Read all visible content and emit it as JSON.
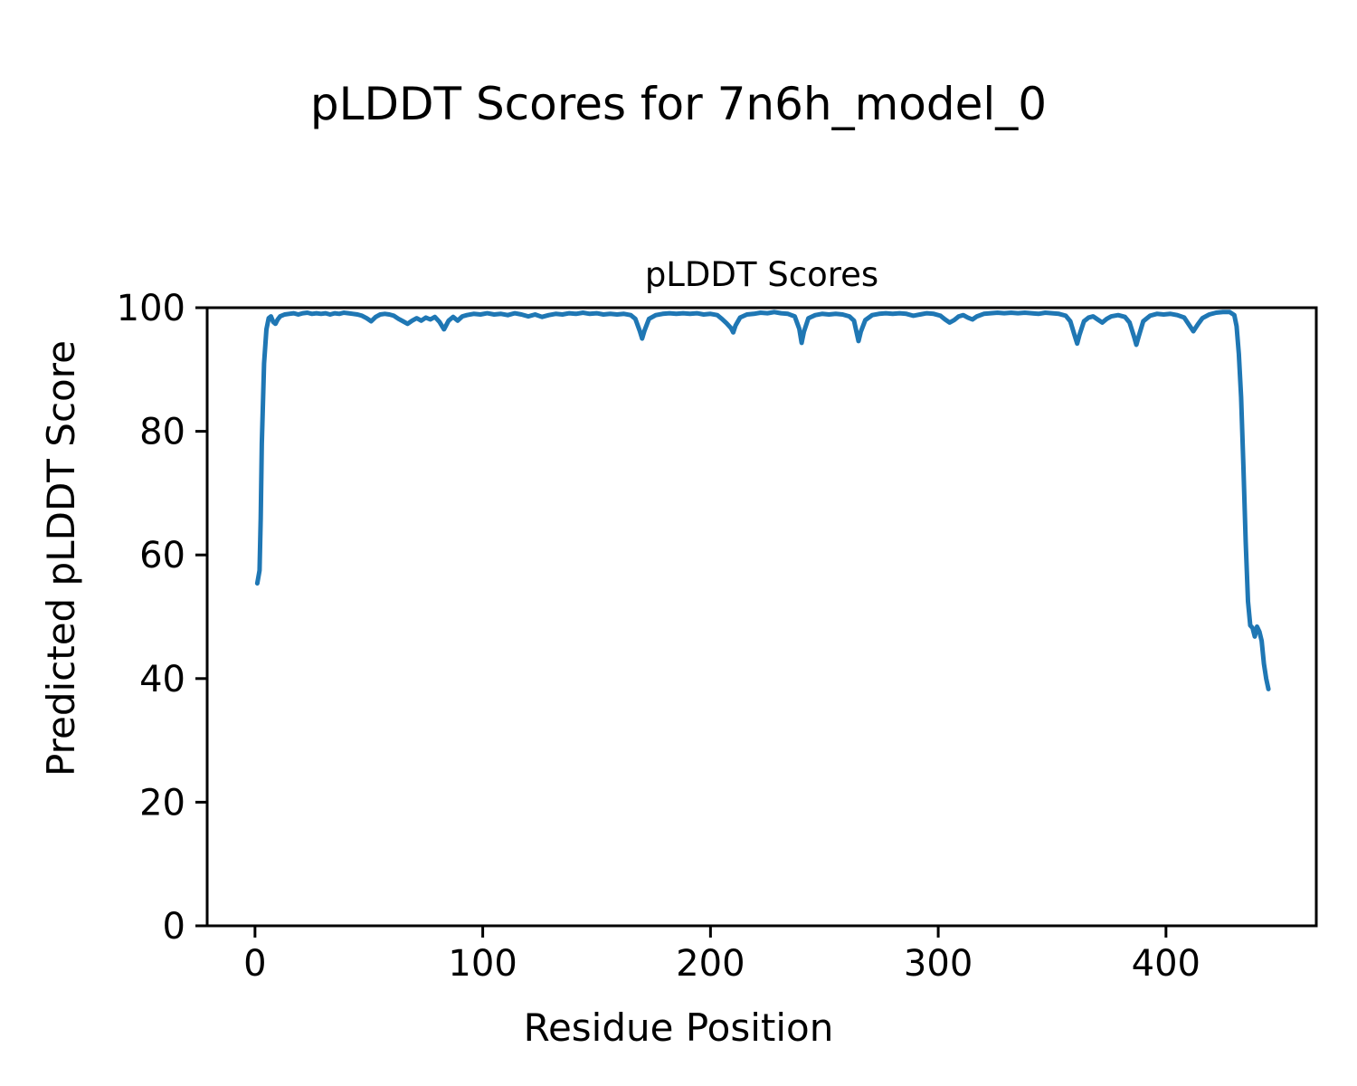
{
  "figure": {
    "suptitle": "pLDDT Scores for 7n6h_model_0"
  },
  "chart_data": {
    "type": "line",
    "title": "pLDDT Scores",
    "xlabel": "Residue Position",
    "ylabel": "Predicted pLDDT Score",
    "xlim": [
      -21,
      466
    ],
    "ylim": [
      0,
      100
    ],
    "xticks": [
      0,
      100,
      200,
      300,
      400
    ],
    "yticks": [
      0,
      20,
      40,
      60,
      80,
      100
    ],
    "grid": false,
    "legend_position": "none",
    "line_color": "#1f77b4",
    "series": [
      {
        "name": "pLDDT",
        "points": [
          [
            1,
            55.4
          ],
          [
            2,
            57.5
          ],
          [
            2.5,
            66
          ],
          [
            3,
            78
          ],
          [
            4,
            91
          ],
          [
            5,
            96.5
          ],
          [
            6,
            98.3
          ],
          [
            7,
            98.6
          ],
          [
            8,
            97.7
          ],
          [
            9,
            97.4
          ],
          [
            10,
            98.1
          ],
          [
            11,
            98.6
          ],
          [
            13,
            98.9
          ],
          [
            15,
            99.0
          ],
          [
            17,
            99.1
          ],
          [
            19,
            98.9
          ],
          [
            21,
            99.1
          ],
          [
            23,
            99.2
          ],
          [
            25,
            99.0
          ],
          [
            27,
            99.1
          ],
          [
            29,
            99.0
          ],
          [
            31,
            99.1
          ],
          [
            33,
            98.9
          ],
          [
            35,
            99.1
          ],
          [
            37,
            99.0
          ],
          [
            39,
            99.2
          ],
          [
            41,
            99.1
          ],
          [
            43,
            99.0
          ],
          [
            45,
            98.9
          ],
          [
            47,
            98.7
          ],
          [
            49,
            98.3
          ],
          [
            51,
            97.8
          ],
          [
            53,
            98.5
          ],
          [
            55,
            98.9
          ],
          [
            57,
            99.0
          ],
          [
            59,
            98.9
          ],
          [
            61,
            98.7
          ],
          [
            63,
            98.2
          ],
          [
            65,
            97.8
          ],
          [
            67,
            97.4
          ],
          [
            69,
            97.9
          ],
          [
            71,
            98.3
          ],
          [
            73,
            97.9
          ],
          [
            75,
            98.4
          ],
          [
            77,
            98.1
          ],
          [
            79,
            98.5
          ],
          [
            81,
            97.7
          ],
          [
            83,
            96.5
          ],
          [
            85,
            97.9
          ],
          [
            87,
            98.5
          ],
          [
            89,
            97.9
          ],
          [
            91,
            98.6
          ],
          [
            93,
            98.8
          ],
          [
            96,
            99.0
          ],
          [
            99,
            98.9
          ],
          [
            102,
            99.1
          ],
          [
            105,
            98.9
          ],
          [
            108,
            99.0
          ],
          [
            111,
            98.8
          ],
          [
            114,
            99.1
          ],
          [
            117,
            98.9
          ],
          [
            120,
            98.6
          ],
          [
            123,
            98.9
          ],
          [
            126,
            98.5
          ],
          [
            129,
            98.8
          ],
          [
            132,
            99.0
          ],
          [
            135,
            98.9
          ],
          [
            138,
            99.1
          ],
          [
            141,
            99.0
          ],
          [
            144,
            99.2
          ],
          [
            147,
            99.0
          ],
          [
            150,
            99.1
          ],
          [
            153,
            98.9
          ],
          [
            156,
            99.0
          ],
          [
            159,
            98.9
          ],
          [
            162,
            99.0
          ],
          [
            165,
            98.8
          ],
          [
            167,
            98.2
          ],
          [
            169,
            96.2
          ],
          [
            170,
            95.0
          ],
          [
            171,
            96.3
          ],
          [
            173,
            98.2
          ],
          [
            176,
            98.8
          ],
          [
            179,
            99.0
          ],
          [
            182,
            99.1
          ],
          [
            185,
            99.0
          ],
          [
            188,
            99.1
          ],
          [
            191,
            99.0
          ],
          [
            194,
            99.1
          ],
          [
            197,
            98.9
          ],
          [
            200,
            99.0
          ],
          [
            203,
            98.8
          ],
          [
            205,
            98.2
          ],
          [
            207,
            97.5
          ],
          [
            209,
            96.7
          ],
          [
            210,
            96.0
          ],
          [
            211,
            97.1
          ],
          [
            213,
            98.4
          ],
          [
            216,
            98.9
          ],
          [
            219,
            99.0
          ],
          [
            222,
            99.2
          ],
          [
            225,
            99.1
          ],
          [
            228,
            99.3
          ],
          [
            231,
            99.1
          ],
          [
            234,
            99.0
          ],
          [
            237,
            98.6
          ],
          [
            239,
            96.6
          ],
          [
            240,
            94.3
          ],
          [
            241,
            96.1
          ],
          [
            243,
            98.3
          ],
          [
            246,
            98.8
          ],
          [
            249,
            99.0
          ],
          [
            252,
            98.9
          ],
          [
            255,
            99.0
          ],
          [
            258,
            98.9
          ],
          [
            261,
            98.6
          ],
          [
            263,
            97.9
          ],
          [
            265,
            94.6
          ],
          [
            266,
            96.1
          ],
          [
            268,
            98.0
          ],
          [
            271,
            98.8
          ],
          [
            274,
            99.0
          ],
          [
            277,
            99.1
          ],
          [
            280,
            99.0
          ],
          [
            283,
            99.1
          ],
          [
            286,
            99.0
          ],
          [
            289,
            98.7
          ],
          [
            292,
            98.9
          ],
          [
            295,
            99.1
          ],
          [
            298,
            99.0
          ],
          [
            301,
            98.7
          ],
          [
            303,
            98.1
          ],
          [
            305,
            97.6
          ],
          [
            307,
            98.0
          ],
          [
            309,
            98.6
          ],
          [
            311,
            98.8
          ],
          [
            313,
            98.4
          ],
          [
            315,
            98.1
          ],
          [
            317,
            98.6
          ],
          [
            320,
            99.0
          ],
          [
            323,
            99.1
          ],
          [
            326,
            99.2
          ],
          [
            329,
            99.1
          ],
          [
            332,
            99.2
          ],
          [
            335,
            99.1
          ],
          [
            338,
            99.2
          ],
          [
            341,
            99.1
          ],
          [
            344,
            99.0
          ],
          [
            347,
            99.2
          ],
          [
            350,
            99.1
          ],
          [
            353,
            99.0
          ],
          [
            356,
            98.7
          ],
          [
            358,
            97.8
          ],
          [
            360,
            95.4
          ],
          [
            361,
            94.2
          ],
          [
            362,
            95.6
          ],
          [
            364,
            97.8
          ],
          [
            366,
            98.4
          ],
          [
            368,
            98.6
          ],
          [
            370,
            98.1
          ],
          [
            372,
            97.6
          ],
          [
            374,
            98.2
          ],
          [
            376,
            98.6
          ],
          [
            379,
            98.8
          ],
          [
            382,
            98.5
          ],
          [
            384,
            97.6
          ],
          [
            386,
            95.3
          ],
          [
            387,
            94.0
          ],
          [
            388,
            95.3
          ],
          [
            390,
            97.8
          ],
          [
            393,
            98.7
          ],
          [
            396,
            99.0
          ],
          [
            399,
            98.9
          ],
          [
            402,
            99.0
          ],
          [
            405,
            98.8
          ],
          [
            408,
            98.4
          ],
          [
            410,
            97.3
          ],
          [
            412,
            96.2
          ],
          [
            414,
            97.3
          ],
          [
            416,
            98.3
          ],
          [
            419,
            98.9
          ],
          [
            422,
            99.2
          ],
          [
            425,
            99.3
          ],
          [
            428,
            99.3
          ],
          [
            430,
            98.8
          ],
          [
            431,
            97.0
          ],
          [
            432,
            92.5
          ],
          [
            433,
            85.5
          ],
          [
            434,
            74.5
          ],
          [
            435,
            62.0
          ],
          [
            436,
            52.5
          ],
          [
            437,
            48.6
          ],
          [
            438,
            48.2
          ],
          [
            439,
            46.8
          ],
          [
            440,
            48.4
          ],
          [
            441,
            47.6
          ],
          [
            442,
            46.1
          ],
          [
            443,
            42.4
          ],
          [
            444,
            40.0
          ],
          [
            445,
            38.3
          ]
        ]
      }
    ]
  }
}
